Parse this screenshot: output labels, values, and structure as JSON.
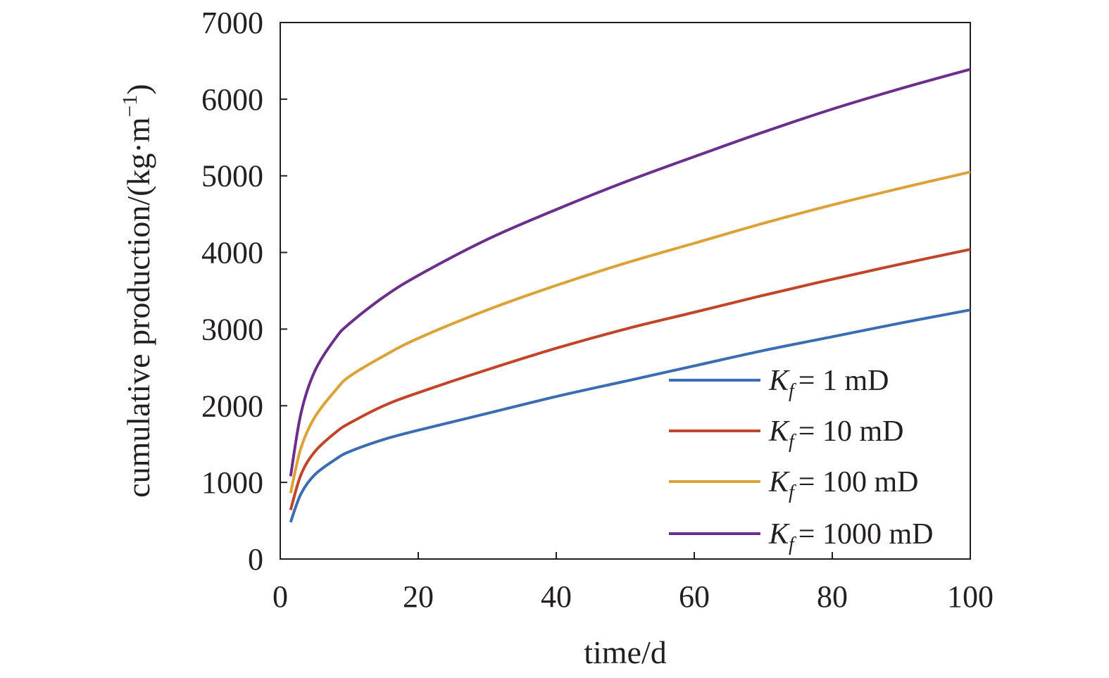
{
  "chart_data": {
    "type": "line",
    "title": "",
    "xlabel": "time/d",
    "ylabel_main": "cumulative production/(kg·m",
    "ylabel_sup": "−1",
    "ylabel_close": ")",
    "xlim": [
      0,
      100
    ],
    "ylim": [
      0,
      7000
    ],
    "x_ticks": [
      "0",
      "20",
      "40",
      "60",
      "80",
      "100"
    ],
    "y_ticks": [
      "0",
      "1000",
      "2000",
      "3000",
      "4000",
      "5000",
      "6000",
      "7000"
    ],
    "grid": false,
    "legend_position": "bottom-right",
    "x": [
      1.5,
      3,
      5,
      8,
      10,
      15,
      20,
      30,
      40,
      50,
      60,
      70,
      80,
      90,
      100
    ],
    "series": [
      {
        "name": "1 mD",
        "legend_var": "K",
        "legend_sub": "f",
        "legend_eq": "= 1 mD",
        "color": "#3b6db3",
        "values": [
          480,
          850,
          1100,
          1300,
          1400,
          1560,
          1680,
          1900,
          2120,
          2320,
          2520,
          2720,
          2900,
          3080,
          3250
        ]
      },
      {
        "name": "10 mD",
        "legend_var": "K",
        "legend_sub": "f",
        "legend_eq": "= 10 mD",
        "color": "#c0452a",
        "values": [
          640,
          1100,
          1400,
          1650,
          1770,
          2000,
          2170,
          2470,
          2750,
          3000,
          3220,
          3440,
          3650,
          3850,
          4040
        ]
      },
      {
        "name": "100 mD",
        "legend_var": "K",
        "legend_sub": "f",
        "legend_eq": "= 100 mD",
        "color": "#dba23a",
        "values": [
          860,
          1450,
          1850,
          2200,
          2380,
          2650,
          2880,
          3250,
          3570,
          3860,
          4120,
          4380,
          4620,
          4840,
          5050
        ]
      },
      {
        "name": "1000 mD",
        "legend_var": "K",
        "legend_sub": "f",
        "legend_eq": "= 1000 mD",
        "color": "#6b2f8c",
        "values": [
          1080,
          1900,
          2450,
          2880,
          3070,
          3420,
          3700,
          4170,
          4560,
          4920,
          5250,
          5570,
          5870,
          6140,
          6390
        ]
      }
    ]
  }
}
